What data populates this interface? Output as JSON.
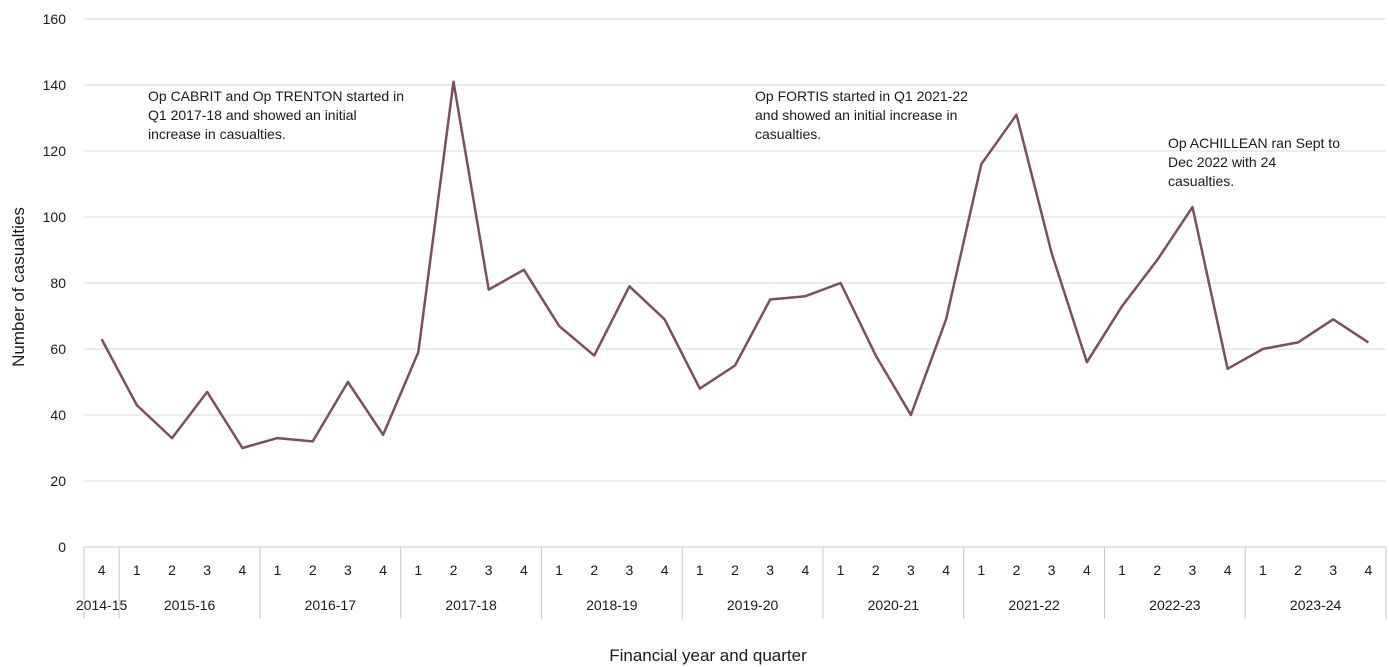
{
  "chart_data": {
    "type": "line",
    "title": "",
    "xlabel": "Financial year and quarter",
    "ylabel": "Number of casualties",
    "ylim": [
      0,
      160
    ],
    "yticks": [
      0,
      20,
      40,
      60,
      80,
      100,
      120,
      140,
      160
    ],
    "grid": true,
    "line_color": "#7b505e",
    "categories": [
      {
        "year": "2014-15",
        "quarter": "4",
        "value": 63
      },
      {
        "year": "2015-16",
        "quarter": "1",
        "value": 43
      },
      {
        "year": "2015-16",
        "quarter": "2",
        "value": 33
      },
      {
        "year": "2015-16",
        "quarter": "3",
        "value": 47
      },
      {
        "year": "2015-16",
        "quarter": "4",
        "value": 30
      },
      {
        "year": "2016-17",
        "quarter": "1",
        "value": 33
      },
      {
        "year": "2016-17",
        "quarter": "2",
        "value": 32
      },
      {
        "year": "2016-17",
        "quarter": "3",
        "value": 50
      },
      {
        "year": "2016-17",
        "quarter": "4",
        "value": 34
      },
      {
        "year": "2017-18",
        "quarter": "1",
        "value": 59
      },
      {
        "year": "2017-18",
        "quarter": "2",
        "value": 141
      },
      {
        "year": "2017-18",
        "quarter": "3",
        "value": 78
      },
      {
        "year": "2017-18",
        "quarter": "4",
        "value": 84
      },
      {
        "year": "2018-19",
        "quarter": "1",
        "value": 67
      },
      {
        "year": "2018-19",
        "quarter": "2",
        "value": 58
      },
      {
        "year": "2018-19",
        "quarter": "3",
        "value": 79
      },
      {
        "year": "2018-19",
        "quarter": "4",
        "value": 69
      },
      {
        "year": "2019-20",
        "quarter": "1",
        "value": 48
      },
      {
        "year": "2019-20",
        "quarter": "2",
        "value": 55
      },
      {
        "year": "2019-20",
        "quarter": "3",
        "value": 75
      },
      {
        "year": "2019-20",
        "quarter": "4",
        "value": 76
      },
      {
        "year": "2020-21",
        "quarter": "1",
        "value": 80
      },
      {
        "year": "2020-21",
        "quarter": "2",
        "value": 58
      },
      {
        "year": "2020-21",
        "quarter": "3",
        "value": 40
      },
      {
        "year": "2020-21",
        "quarter": "4",
        "value": 69
      },
      {
        "year": "2021-22",
        "quarter": "1",
        "value": 116
      },
      {
        "year": "2021-22",
        "quarter": "2",
        "value": 131
      },
      {
        "year": "2021-22",
        "quarter": "3",
        "value": 89
      },
      {
        "year": "2021-22",
        "quarter": "4",
        "value": 56
      },
      {
        "year": "2022-23",
        "quarter": "1",
        "value": 73
      },
      {
        "year": "2022-23",
        "quarter": "2",
        "value": 87
      },
      {
        "year": "2022-23",
        "quarter": "3",
        "value": 103
      },
      {
        "year": "2022-23",
        "quarter": "4",
        "value": 54
      },
      {
        "year": "2023-24",
        "quarter": "1",
        "value": 60
      },
      {
        "year": "2023-24",
        "quarter": "2",
        "value": 62
      },
      {
        "year": "2023-24",
        "quarter": "3",
        "value": 69
      },
      {
        "year": "2023-24",
        "quarter": "4",
        "value": 62
      }
    ],
    "annotations": [
      {
        "lines": [
          "Op CABRIT and Op TRENTON started in",
          "Q1 2017-18 and showed an initial",
          "increase in casualties."
        ]
      },
      {
        "lines": [
          "Op FORTIS started in Q1 2021-22",
          "and showed an initial increase in",
          "casualties."
        ]
      },
      {
        "lines": [
          "Op ACHILLEAN ran Sept to",
          "Dec 2022 with 24",
          "casualties."
        ]
      }
    ]
  }
}
